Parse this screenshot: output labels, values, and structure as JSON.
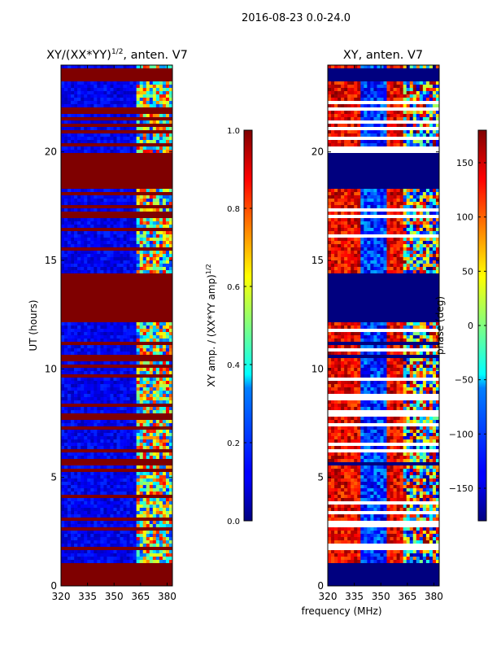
{
  "figure_title": "2016-08-23 0.0-24.0",
  "colors": {
    "red": "#7f0000",
    "blue": "#00007f",
    "frame": "#000000"
  },
  "chart_data": [
    {
      "type": "heatmap",
      "title_main": "XY/(XX*YY)",
      "title_sup": "1/2",
      "title_suffix": ", anten. V7",
      "xlabel": "",
      "ylabel": "UT (hours)",
      "xlim": [
        320,
        383
      ],
      "ylim": [
        0,
        24
      ],
      "xticks": [
        "320",
        "335",
        "350",
        "365",
        "380"
      ],
      "xtick_values": [
        320,
        335,
        350,
        365,
        380
      ],
      "yticks": [
        "0",
        "5",
        "10",
        "15",
        "20"
      ],
      "ytick_values": [
        0,
        5,
        10,
        15,
        20
      ],
      "colorbar": {
        "label_main": "XY amp. / (XX*YY amp)",
        "label_sup": "1/2",
        "range": [
          0.0,
          1.0
        ],
        "ticks": [
          "0.0",
          "0.2",
          "0.4",
          "0.6",
          "0.8",
          "1.0"
        ],
        "tick_values": [
          0.0,
          0.2,
          0.4,
          0.6,
          0.8,
          1.0
        ]
      },
      "flagged_ranges_hours": [
        [
          0.0,
          1.0
        ],
        [
          5.5,
          5.65
        ],
        [
          8.5,
          8.6
        ],
        [
          10.5,
          10.65
        ],
        [
          11.1,
          11.3
        ],
        [
          12.15,
          14.4
        ],
        [
          18.3,
          19.9
        ],
        [
          23.3,
          23.9
        ]
      ]
    },
    {
      "type": "heatmap",
      "title": "XY, anten. V7",
      "xlabel": "frequency (MHz)",
      "ylabel": "",
      "xlim": [
        320,
        383
      ],
      "ylim": [
        0,
        24
      ],
      "xticks": [
        "320",
        "335",
        "350",
        "365",
        "380"
      ],
      "xtick_values": [
        320,
        335,
        350,
        365,
        380
      ],
      "yticks": [
        "0",
        "5",
        "10",
        "15",
        "20"
      ],
      "ytick_values": [
        0,
        5,
        10,
        15,
        20
      ],
      "colorbar": {
        "label": "phase (deg)",
        "range": [
          -180,
          180
        ],
        "ticks": [
          "−150",
          "−100",
          "−50",
          "0",
          "50",
          "100",
          "150"
        ],
        "tick_values": [
          -150,
          -100,
          -50,
          0,
          50,
          100,
          150
        ]
      },
      "flagged_ranges_hours": [
        [
          0.0,
          1.0
        ],
        [
          5.5,
          5.65
        ],
        [
          8.5,
          8.6
        ],
        [
          10.5,
          10.65
        ],
        [
          11.1,
          11.3
        ],
        [
          12.15,
          14.4
        ],
        [
          18.3,
          19.9
        ],
        [
          23.3,
          23.9
        ]
      ]
    }
  ]
}
